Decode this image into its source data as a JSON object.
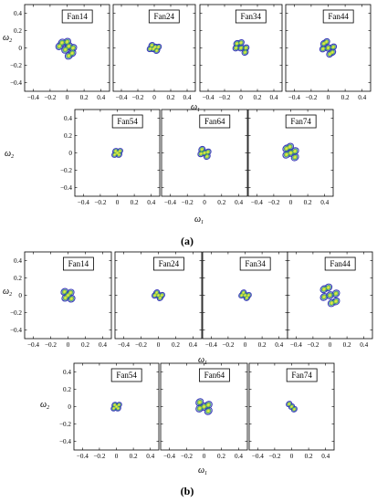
{
  "figure": {
    "panels": [
      {
        "label": "(a)",
        "xlabel": "ω",
        "xlabel_sub": "1",
        "ylabel": "ω",
        "ylabel_sub": "2",
        "plots": [
          "Fan14",
          "Fan24",
          "Fan34",
          "Fan44",
          "Fan54",
          "Fan64",
          "Fan74"
        ]
      },
      {
        "label": "(b)",
        "xlabel": "ω",
        "xlabel_sub": "1",
        "ylabel": "ω",
        "ylabel_sub": "2",
        "plots": [
          "Fan14",
          "Fan24",
          "Fan34",
          "Fan44",
          "Fan54",
          "Fan64",
          "Fan74"
        ]
      }
    ]
  },
  "chart_data": {
    "type": "heatmap",
    "xlim": [
      -0.5,
      0.5
    ],
    "ylim": [
      -0.5,
      0.5
    ],
    "xticks": [
      -0.4,
      -0.2,
      0,
      0.2,
      0.4
    ],
    "xtick_labels": [
      "−0.4",
      "−0.2",
      "0",
      "0.2",
      "0.4"
    ],
    "yticks": [
      0.4,
      0.2,
      0,
      -0.2,
      -0.4
    ],
    "ytick_labels": [
      "0.4",
      "0.2",
      "0",
      "−0.2",
      "−0.4"
    ],
    "colors": {
      "outer": "#3b3bb8",
      "mid": "#2f8f7a",
      "inner": "#b8dd3a",
      "core": "#f2e84a"
    },
    "contour_sets": [
      [
        {
          "name": "Fan14",
          "lobes": [
            [
              -0.06,
              0.06
            ],
            [
              0.06,
              -0.06
            ],
            [
              -0.02,
              -0.02
            ],
            [
              0.02,
              0.02
            ],
            [
              -0.09,
              0.02
            ],
            [
              0.02,
              -0.09
            ],
            [
              0.07,
              0.0
            ],
            [
              0.0,
              0.07
            ]
          ],
          "lobe_r": 0.045,
          "outline": [
            -0.07,
            0.07,
            0.07,
            -0.07
          ]
        },
        {
          "name": "Fan24",
          "lobes": [
            [
              -0.03,
              0.03
            ],
            [
              0.03,
              -0.03
            ],
            [
              0.01,
              0.01
            ],
            [
              -0.01,
              -0.01
            ],
            [
              -0.05,
              -0.01
            ],
            [
              0.05,
              0.01
            ]
          ],
          "lobe_r": 0.038,
          "outline": [
            -0.05,
            0.05,
            0.05,
            -0.05
          ]
        },
        {
          "name": "Fan34",
          "lobes": [
            [
              -0.05,
              0.05
            ],
            [
              0.05,
              -0.05
            ],
            [
              0.0,
              0.0
            ],
            [
              -0.06,
              0.0
            ],
            [
              0.06,
              0.0
            ],
            [
              0.0,
              0.06
            ]
          ],
          "lobe_r": 0.04,
          "outline": [
            -0.06,
            0.06,
            0.06,
            -0.06
          ]
        },
        {
          "name": "Fan44",
          "lobes": [
            [
              -0.05,
              0.05
            ],
            [
              0.05,
              -0.05
            ],
            [
              0.0,
              0.0
            ],
            [
              -0.06,
              -0.01
            ],
            [
              0.06,
              0.01
            ],
            [
              -0.02,
              0.07
            ],
            [
              0.02,
              -0.07
            ]
          ],
          "lobe_r": 0.04,
          "outline": [
            -0.08,
            0.08,
            0.08,
            -0.08
          ]
        },
        {
          "name": "Fan54",
          "lobes": [
            [
              -0.02,
              0.02
            ],
            [
              0.02,
              -0.02
            ],
            [
              0.0,
              0.0
            ],
            [
              -0.03,
              -0.02
            ],
            [
              0.03,
              0.02
            ]
          ],
          "lobe_r": 0.035,
          "outline": [
            -0.04,
            0.04,
            0.04,
            -0.04
          ]
        },
        {
          "name": "Fan64",
          "lobes": [
            [
              -0.03,
              0.04
            ],
            [
              0.03,
              -0.04
            ],
            [
              0.0,
              0.0
            ],
            [
              -0.04,
              -0.01
            ],
            [
              0.04,
              0.01
            ]
          ],
          "lobe_r": 0.038,
          "outline": [
            -0.05,
            0.05,
            0.05,
            -0.05
          ]
        },
        {
          "name": "Fan74",
          "lobes": [
            [
              -0.05,
              0.05
            ],
            [
              0.05,
              -0.05
            ],
            [
              0.0,
              0.0
            ],
            [
              -0.05,
              -0.02
            ],
            [
              0.05,
              0.02
            ],
            [
              -0.01,
              0.07
            ]
          ],
          "lobe_r": 0.045,
          "outline": [
            -0.07,
            0.07,
            0.07,
            -0.07
          ]
        }
      ],
      [
        {
          "name": "Fan14",
          "lobes": [
            [
              -0.04,
              0.04
            ],
            [
              0.04,
              -0.04
            ],
            [
              -0.03,
              -0.03
            ],
            [
              0.03,
              0.03
            ],
            [
              0.0,
              0.0
            ]
          ],
          "lobe_r": 0.042,
          "outline": [
            -0.06,
            0.06,
            0.06,
            -0.06
          ]
        },
        {
          "name": "Fan24",
          "lobes": [
            [
              -0.02,
              0.03
            ],
            [
              0.02,
              -0.03
            ],
            [
              0.0,
              0.0
            ],
            [
              -0.04,
              0.0
            ],
            [
              0.04,
              0.0
            ]
          ],
          "lobe_r": 0.035,
          "outline": [
            -0.05,
            0.05,
            0.05,
            -0.05
          ]
        },
        {
          "name": "Fan34",
          "lobes": [
            [
              -0.02,
              0.03
            ],
            [
              0.02,
              -0.03
            ],
            [
              0.0,
              0.0
            ],
            [
              -0.04,
              0.0
            ],
            [
              0.04,
              0.0
            ]
          ],
          "lobe_r": 0.035,
          "outline": [
            -0.05,
            0.05,
            0.05,
            -0.05
          ]
        },
        {
          "name": "Fan44",
          "lobes": [
            [
              -0.07,
              0.07
            ],
            [
              0.07,
              -0.07
            ],
            [
              0.0,
              0.0
            ],
            [
              -0.07,
              -0.02
            ],
            [
              0.07,
              0.02
            ],
            [
              -0.02,
              0.09
            ],
            [
              0.02,
              -0.09
            ]
          ],
          "lobe_r": 0.045,
          "outline": [
            -0.1,
            0.1,
            0.1,
            -0.1
          ]
        },
        {
          "name": "Fan54",
          "lobes": [
            [
              -0.02,
              0.02
            ],
            [
              0.02,
              -0.02
            ],
            [
              0.0,
              0.0
            ],
            [
              -0.03,
              -0.02
            ],
            [
              0.03,
              0.02
            ]
          ],
          "lobe_r": 0.033,
          "outline": [
            -0.04,
            0.04,
            0.04,
            -0.04
          ]
        },
        {
          "name": "Fan64",
          "lobes": [
            [
              -0.05,
              0.05
            ],
            [
              0.05,
              -0.05
            ],
            [
              0.0,
              0.0
            ],
            [
              -0.05,
              -0.02
            ],
            [
              0.05,
              0.02
            ]
          ],
          "lobe_r": 0.045,
          "outline": [
            -0.07,
            0.07,
            0.07,
            -0.07
          ]
        },
        {
          "name": "Fan74",
          "lobes": [
            [
              -0.03,
              0.03
            ],
            [
              0.03,
              -0.03
            ],
            [
              0.0,
              0.0
            ]
          ],
          "lobe_r": 0.035,
          "outline": [
            -0.06,
            0.06,
            0.06,
            -0.06
          ]
        }
      ]
    ]
  }
}
